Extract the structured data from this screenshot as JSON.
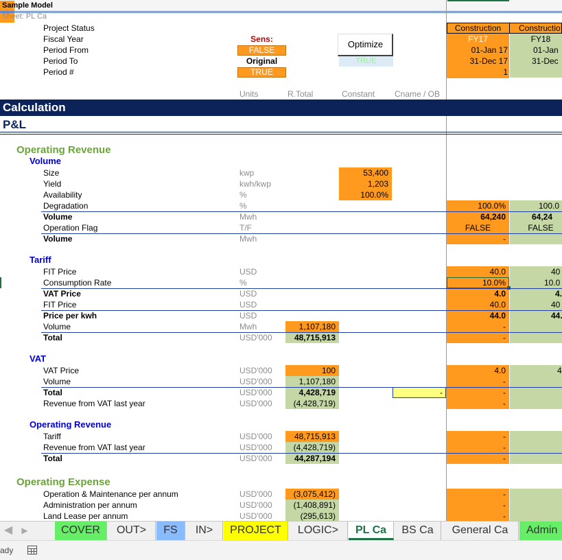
{
  "header": {
    "model_title": "Sample Model",
    "sheet_name": "Sheet: PL Ca"
  },
  "top_labels": [
    "Project Status",
    "Fiscal Year",
    "Period From",
    "Period To",
    "Period #"
  ],
  "sens": {
    "title": "Sens:",
    "v1": "FALSE",
    "v2": "Original",
    "v3": "TRUE"
  },
  "optimize": {
    "label": "Optimize",
    "flag": "TRUE"
  },
  "periods": [
    {
      "status": "Construction",
      "fy": "FY17",
      "from": "01-Jan 17",
      "to": "31-Dec 17",
      "num": "1"
    },
    {
      "status": "Constructio",
      "fy": "FY18",
      "from": "01-Jan",
      "to": "31-Dec",
      "num": ""
    }
  ],
  "col_headers": {
    "units": "Units",
    "rtotal": "R.Total",
    "constant": "Constant",
    "cname": "Cname / OB"
  },
  "sections": {
    "calculation": "Calculation",
    "pl": "P&L"
  },
  "op_rev": {
    "title": "Operating Revenue",
    "volume": {
      "title": "Volume",
      "size": {
        "label": "Size",
        "unit": "kwp",
        "constant": "53,400"
      },
      "yield": {
        "label": "Yield",
        "unit": "kwh/kwp",
        "constant": "1,203"
      },
      "availability": {
        "label": "Availability",
        "unit": "%",
        "constant": "100.0%"
      },
      "degradation": {
        "label": "Degradation",
        "unit": "%",
        "p1": "100.0%",
        "p2": "100.0"
      },
      "volume1": {
        "label": "Volume",
        "unit": "Mwh",
        "p1": "64,240",
        "p2": "64,24"
      },
      "opflag": {
        "label": "Operation Flag",
        "unit": "T/F",
        "p1": "FALSE",
        "p2": "FALSE"
      },
      "volume2": {
        "label": "Volume",
        "unit": "Mwh",
        "p1": "-"
      }
    },
    "tariff": {
      "title": "Tariff",
      "fit1": {
        "label": "FIT Price",
        "unit": "USD",
        "p1": "40.0",
        "p2": "40"
      },
      "cons": {
        "label": "Consumption Rate",
        "unit": "%",
        "p1": "10.0%",
        "p2": "10.0"
      },
      "vat": {
        "label": "VAT Price",
        "unit": "USD",
        "p1": "4.0",
        "p2": "4."
      },
      "fit2": {
        "label": "FIT Price",
        "unit": "USD",
        "p1": "40.0",
        "p2": "40"
      },
      "ppk": {
        "label": "Price per kwh",
        "unit": "USD",
        "p1": "44.0",
        "p2": "44."
      },
      "vol": {
        "label": "Volume",
        "unit": "Mwh",
        "rtotal": "1,107,180",
        "p1": "-"
      },
      "total": {
        "label": "Total",
        "unit": "USD'000",
        "rtotal": "48,715,913",
        "p1": "-"
      }
    },
    "vat": {
      "title": "VAT",
      "price": {
        "label": "VAT Price",
        "unit": "USD'000",
        "rtotal": "100",
        "p1": "4.0",
        "p2": "4"
      },
      "vol": {
        "label": "Volume",
        "unit": "USD'000",
        "rtotal": "1,107,180",
        "p1": "-"
      },
      "total": {
        "label": "Total",
        "unit": "USD'000",
        "rtotal": "4,428,719",
        "cname": "-",
        "p1": "-"
      },
      "rev": {
        "label": "Revenue from VAT last year",
        "unit": "USD'000",
        "rtotal": "(4,428,719)",
        "p1": "-"
      }
    },
    "oprev2": {
      "title": "Operating Revenue",
      "tariff": {
        "label": "Tariff",
        "unit": "USD'000",
        "rtotal": "48,715,913",
        "p1": "-"
      },
      "rev": {
        "label": "Revenue from VAT last year",
        "unit": "USD'000",
        "rtotal": "(4,428,719)",
        "p1": "-"
      },
      "total": {
        "label": "Total",
        "unit": "USD'000",
        "rtotal": "44,287,194",
        "p1": "-"
      }
    }
  },
  "op_exp": {
    "title": "Operating Expense",
    "om": {
      "label": "Operation & Maintenance per annum",
      "unit": "USD'000",
      "rtotal": "(3,075,412)",
      "p1": "-"
    },
    "admin": {
      "label": "Administration per annum",
      "unit": "USD'000",
      "rtotal": "(1,408,891)",
      "p1": "-"
    },
    "land": {
      "label": "Land Lease per annum",
      "unit": "USD'000",
      "rtotal": "(295,613)",
      "p1": "-"
    }
  },
  "tabs": [
    "COVER",
    "OUT>",
    "FS",
    "IN>",
    "PROJECT",
    "LOGIC>",
    "PL Ca",
    "BS Ca",
    "General Ca",
    "Admin"
  ],
  "status": {
    "text": "ady"
  },
  "colors": {
    "orange": "#ff9a1f",
    "green": "#c4d7a4",
    "navy": "#0b2359",
    "section_green": "#6aa43a",
    "blue_title": "#0000cc",
    "tab_green": "#66ee66",
    "tab_blue": "#88bbff",
    "tab_yellow": "#ffff00"
  }
}
